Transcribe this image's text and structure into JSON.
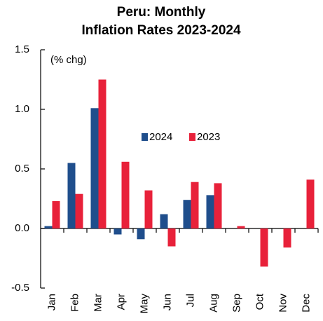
{
  "chart_data": {
    "type": "bar",
    "title": [
      "Peru: Monthly",
      "Inflation Rates 2023-2024"
    ],
    "annotation": "(% chg)",
    "categories": [
      "Jan",
      "Feb",
      "Mar",
      "Apr",
      "May",
      "Jun",
      "Jul",
      "Aug",
      "Sep",
      "Oct",
      "Nov",
      "Dec"
    ],
    "series": [
      {
        "name": "2024",
        "color": "#1f4e8c",
        "values": [
          0.02,
          0.55,
          1.01,
          -0.05,
          -0.09,
          0.12,
          0.24,
          0.28,
          null,
          null,
          null,
          null
        ]
      },
      {
        "name": "2023",
        "color": "#e8213a",
        "values": [
          0.23,
          0.29,
          1.25,
          0.56,
          0.32,
          -0.15,
          0.39,
          0.38,
          0.02,
          -0.32,
          -0.16,
          0.41
        ]
      }
    ],
    "ylim": [
      -0.5,
      1.5
    ],
    "yticks": [
      -0.5,
      {
        "value": 0,
        "label": "0.0"
      },
      0.5,
      {
        "value": 1,
        "label": "1.0"
      },
      1.5
    ],
    "grid": false
  }
}
